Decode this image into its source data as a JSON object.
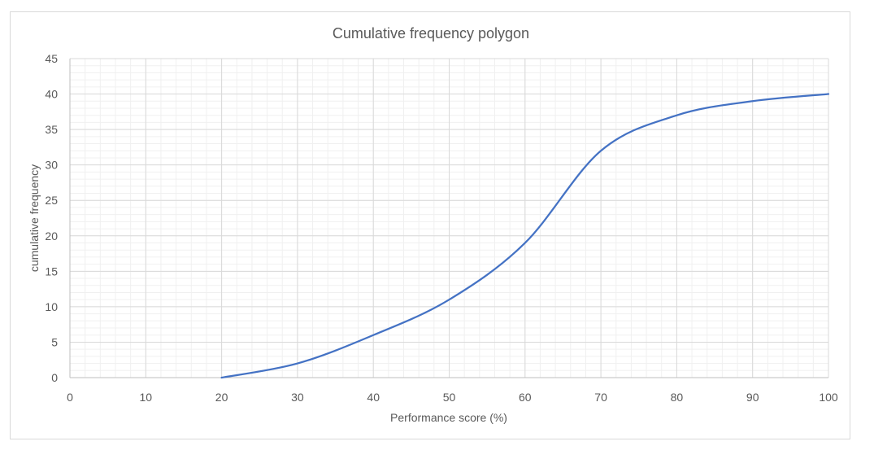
{
  "chart_data": {
    "type": "line",
    "title": "Cumulative frequency polygon",
    "xlabel": "Performance score (%)",
    "ylabel": "cumulative frequency",
    "xlim": [
      0,
      100
    ],
    "ylim": [
      0,
      45
    ],
    "x_ticks": [
      0,
      10,
      20,
      30,
      40,
      50,
      60,
      70,
      80,
      90,
      100
    ],
    "y_ticks": [
      0,
      5,
      10,
      15,
      20,
      25,
      30,
      35,
      40,
      45
    ],
    "grid": {
      "major": true,
      "minor": true
    },
    "legend": "none",
    "smoothed": true,
    "line_color": "#4472c4",
    "series": [
      {
        "x": [
          20,
          30,
          40,
          50,
          60,
          70,
          80,
          90,
          100
        ],
        "y": [
          0,
          2,
          6,
          11,
          19,
          32,
          37,
          39,
          40
        ]
      }
    ]
  }
}
